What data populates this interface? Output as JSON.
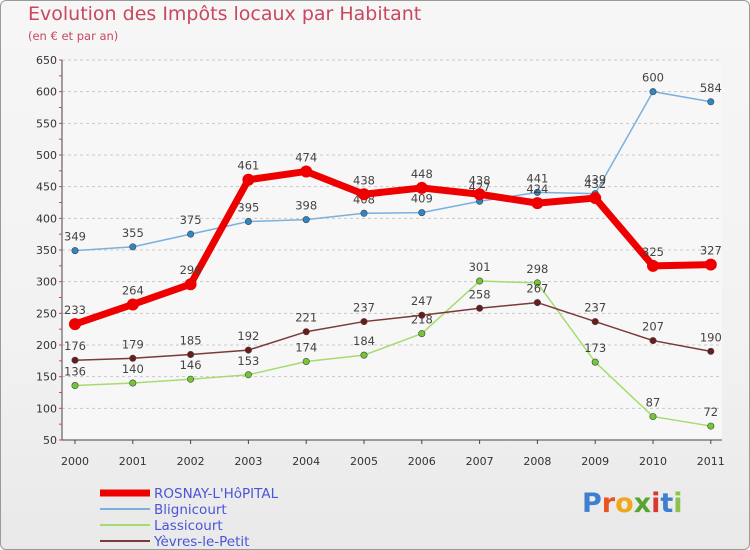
{
  "title": "Evolution des Impôts locaux par Habitant",
  "subtitle": "(en € et par an)",
  "logo_text": "Proxiti",
  "colors": {
    "title": "#c8485e",
    "axis_text": "#333333",
    "grid": "#c9c9c9",
    "legend_text": "#4a55d8"
  },
  "chart_data": {
    "type": "line",
    "x": [
      2000,
      2001,
      2002,
      2003,
      2004,
      2005,
      2006,
      2007,
      2008,
      2009,
      2010,
      2011
    ],
    "ylim": [
      50,
      650
    ],
    "yticks": [
      50,
      100,
      150,
      200,
      250,
      300,
      350,
      400,
      450,
      500,
      550,
      600,
      650
    ],
    "grid": "dashed horizontal",
    "legend_position": "bottom-left",
    "series": [
      {
        "name": "ROSNAY-L'HôPITAL",
        "color": "#ee0000",
        "marker_color": "#ee0000",
        "width": 7,
        "values": [
          233,
          264,
          296,
          461,
          474,
          438,
          448,
          438,
          424,
          432,
          325,
          327
        ],
        "labels": [
          "233",
          "264",
          "296",
          "461",
          "474",
          "438",
          "448",
          "438",
          "424",
          "432",
          "325",
          "327"
        ]
      },
      {
        "name": "Blignicourt",
        "color": "#7ab0dd",
        "marker_color": "#2f86c6",
        "width": 1.5,
        "values": [
          349,
          355,
          375,
          395,
          398,
          408,
          409,
          427,
          441,
          439,
          600,
          584
        ],
        "labels": [
          "349",
          "355",
          "375",
          "395",
          "398",
          "408",
          "409",
          "427",
          "441",
          "439",
          "600",
          "584"
        ]
      },
      {
        "name": "Lassicourt",
        "color": "#a6dc6e",
        "marker_color": "#73c832",
        "width": 1.5,
        "values": [
          136,
          140,
          146,
          153,
          174,
          184,
          218,
          301,
          298,
          173,
          87,
          72
        ],
        "labels": [
          "136",
          "140",
          "146",
          "153",
          "174",
          "184",
          "218",
          "301",
          "298",
          "173",
          "87",
          "72"
        ]
      },
      {
        "name": "Yèvres-le-Petit",
        "color": "#7a3a3a",
        "marker_color": "#6a1c1c",
        "width": 1.5,
        "values": [
          176,
          179,
          185,
          192,
          221,
          237,
          247,
          258,
          267,
          237,
          207,
          190
        ],
        "labels": [
          "176",
          "179",
          "185",
          "192",
          "221",
          "237",
          "247",
          "258",
          "267",
          "237",
          "207",
          "190"
        ]
      }
    ]
  }
}
